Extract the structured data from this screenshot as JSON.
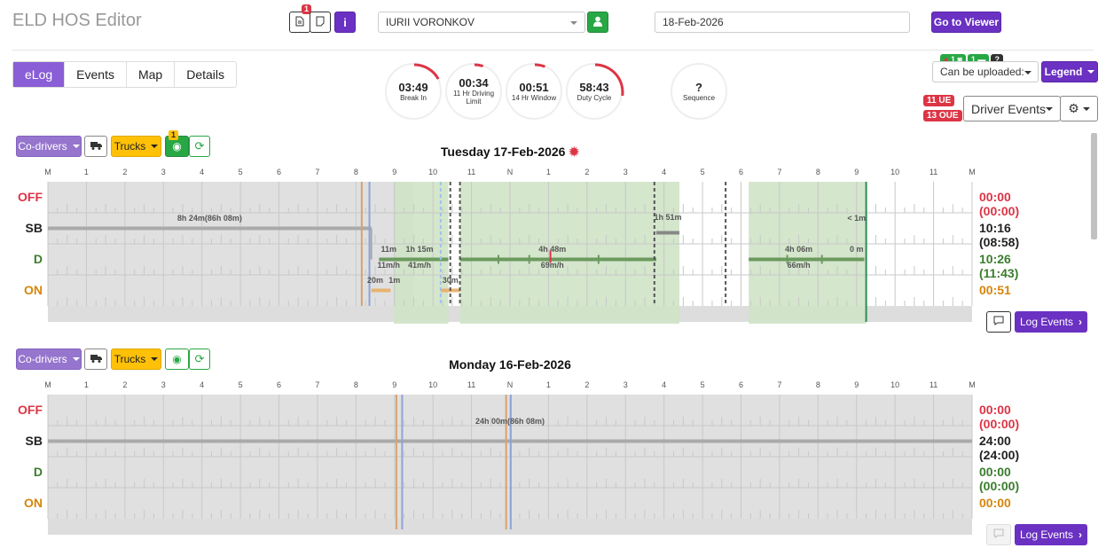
{
  "app_title": "ELD HOS Editor",
  "header": {
    "doc_badge": "1",
    "driver": "IURII VORONKOV",
    "date": "18-Feb-2026",
    "go_viewer": "Go to Viewer"
  },
  "tabs": [
    "eLog",
    "Events",
    "Map",
    "Details"
  ],
  "gauges": [
    {
      "time": "03:49",
      "label": "Break In",
      "used": 0.17
    },
    {
      "time": "00:34",
      "label": "11 Hr Driving Limit",
      "used": 0.05
    },
    {
      "time": "00:51",
      "label": "14 Hr Window",
      "used": 0.06
    },
    {
      "time": "58:43",
      "label": "Duty Cycle",
      "used": 0.27
    },
    {
      "time": "?",
      "label": "Sequence",
      "used": 0
    }
  ],
  "right_panel": {
    "upload_label": "Can be uploaded:",
    "upload_badges": [
      "1",
      "1",
      "?"
    ],
    "legend": "Legend",
    "ue": "11 UE",
    "oue": "13 OUE",
    "driver_events": "Driver Events"
  },
  "hours": [
    "M",
    "1",
    "2",
    "3",
    "4",
    "5",
    "6",
    "7",
    "8",
    "9",
    "10",
    "11",
    "N",
    "1",
    "2",
    "3",
    "4",
    "5",
    "6",
    "7",
    "8",
    "9",
    "10",
    "11",
    "M"
  ],
  "status_labels": [
    "OFF",
    "SB",
    "D",
    "ON"
  ],
  "colors": {
    "off": "#dc3545",
    "sb": "#222",
    "d": "#3a7d2c",
    "on": "#d4860b",
    "accent": "#6a31c2"
  },
  "days": [
    {
      "title": "Tuesday 17-Feb-2026",
      "codrivers": "Co-drivers",
      "trucks": "Trucks",
      "vehicle_badge": "1",
      "totals": [
        "00:00 (00:00)",
        "10:16 (08:58)",
        "10:26 (11:43)",
        "00:51"
      ],
      "annotations": {
        "sb1": "8h 24m(86h 08m)",
        "d_11m": "11m",
        "d_1h15m": "1h 15m",
        "d_11mh": "11m/h",
        "d_41mh": "41m/h",
        "on_20m": "20m",
        "on_1m": "1m",
        "on_30m": "30m",
        "d_4h48": "4h 48m",
        "d_69": "69m/h",
        "sb_1h51": "1h 51m",
        "d_4h06": "4h 06m",
        "d_66": "66m/h",
        "sb_lt1": "< 1m",
        "d_0m": "0 m"
      },
      "log_events": "Log Events"
    },
    {
      "title": "Monday 16-Feb-2026",
      "codrivers": "Co-drivers",
      "trucks": "Trucks",
      "totals": [
        "00:00 (00:00)",
        "24:00 (24:00)",
        "00:00 (00:00)",
        "00:00"
      ],
      "annotations": {
        "sb1": "24h 00m(86h 08m)"
      },
      "log_events": "Log Events"
    }
  ]
}
